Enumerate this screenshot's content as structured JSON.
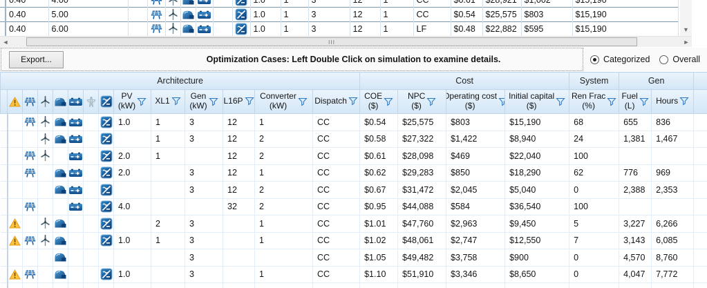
{
  "top_table": {
    "rows": [
      {
        "sens1": "0.40",
        "sens2": "4.00",
        "icons": {
          "pv": true,
          "wind": true,
          "gen": true,
          "battery": true,
          "converter": true
        },
        "values": [
          "1.0",
          "1",
          "3",
          "12",
          "1",
          "CC",
          "$0.61",
          "$28,921",
          "$1,002",
          "$15,190"
        ]
      },
      {
        "sens1": "0.40",
        "sens2": "5.00",
        "icons": {
          "pv": true,
          "wind": true,
          "gen": true,
          "battery": true,
          "converter": true
        },
        "values": [
          "1.0",
          "1",
          "3",
          "12",
          "1",
          "CC",
          "$0.54",
          "$25,575",
          "$803",
          "$15,190"
        ]
      },
      {
        "sens1": "0.40",
        "sens2": "6.00",
        "icons": {
          "pv": true,
          "wind": true,
          "gen": true,
          "battery": true,
          "converter": true
        },
        "values": [
          "1.0",
          "1",
          "3",
          "12",
          "1",
          "LF",
          "$0.48",
          "$22,882",
          "$595",
          "$15,190"
        ]
      }
    ]
  },
  "toolbar": {
    "export_label": "Export...",
    "message": "Optimization Cases: Left Double Click on simulation to examine details.",
    "radio_categorized": "Categorized",
    "radio_overall": "Overall",
    "categorized_selected": true
  },
  "main_table": {
    "group_headers": [
      "Architecture",
      "Cost",
      "System",
      "Gen"
    ],
    "header_icons": [
      "warning",
      "pv",
      "wind",
      "generator",
      "battery",
      "grid",
      "converter"
    ],
    "columns": [
      {
        "label": "PV",
        "sub": "(kW)"
      },
      {
        "label": "XL1",
        "sub": ""
      },
      {
        "label": "Gen",
        "sub": "(kW)"
      },
      {
        "label": "L16P",
        "sub": ""
      },
      {
        "label": "Converter",
        "sub": "(kW)"
      },
      {
        "label": "Dispatch",
        "sub": ""
      },
      {
        "label": "COE",
        "sub": "($)"
      },
      {
        "label": "NPC",
        "sub": "($)"
      },
      {
        "label": "Operating cost",
        "sub": "($)"
      },
      {
        "label": "Initial capital",
        "sub": "($)"
      },
      {
        "label": "Ren Frac",
        "sub": "(%)"
      },
      {
        "label": "Fuel",
        "sub": "(L)"
      },
      {
        "label": "Hours",
        "sub": ""
      }
    ],
    "rows": [
      {
        "warning": false,
        "pv": true,
        "wind": true,
        "gen": true,
        "battery": true,
        "converter": true,
        "values": [
          "1.0",
          "1",
          "3",
          "12",
          "1",
          "CC",
          "$0.54",
          "$25,575",
          "$803",
          "$15,190",
          "68",
          "655",
          "836"
        ]
      },
      {
        "warning": false,
        "pv": false,
        "wind": true,
        "gen": true,
        "battery": true,
        "converter": true,
        "values": [
          "",
          "1",
          "3",
          "12",
          "2",
          "CC",
          "$0.58",
          "$27,322",
          "$1,422",
          "$8,940",
          "24",
          "1,381",
          "1,467"
        ]
      },
      {
        "warning": false,
        "pv": true,
        "wind": true,
        "gen": false,
        "battery": true,
        "converter": true,
        "values": [
          "2.0",
          "1",
          "",
          "12",
          "2",
          "CC",
          "$0.61",
          "$28,098",
          "$469",
          "$22,040",
          "100",
          "",
          ""
        ]
      },
      {
        "warning": false,
        "pv": true,
        "wind": false,
        "gen": true,
        "battery": true,
        "converter": true,
        "values": [
          "2.0",
          "",
          "3",
          "12",
          "1",
          "CC",
          "$0.62",
          "$29,283",
          "$850",
          "$18,290",
          "62",
          "776",
          "969"
        ]
      },
      {
        "warning": false,
        "pv": false,
        "wind": false,
        "gen": true,
        "battery": true,
        "converter": true,
        "values": [
          "",
          "",
          "3",
          "12",
          "2",
          "CC",
          "$0.67",
          "$31,472",
          "$2,045",
          "$5,040",
          "0",
          "2,388",
          "2,353"
        ]
      },
      {
        "warning": false,
        "pv": true,
        "wind": false,
        "gen": false,
        "battery": true,
        "converter": true,
        "values": [
          "4.0",
          "",
          "",
          "32",
          "2",
          "CC",
          "$0.95",
          "$44,088",
          "$584",
          "$36,540",
          "100",
          "",
          ""
        ]
      },
      {
        "warning": true,
        "pv": false,
        "wind": true,
        "gen": true,
        "battery": false,
        "converter": true,
        "values": [
          "",
          "2",
          "3",
          "",
          "1",
          "CC",
          "$1.01",
          "$47,760",
          "$2,963",
          "$9,450",
          "5",
          "3,227",
          "6,266"
        ]
      },
      {
        "warning": true,
        "pv": true,
        "wind": true,
        "gen": true,
        "battery": false,
        "converter": true,
        "values": [
          "1.0",
          "1",
          "3",
          "",
          "1",
          "CC",
          "$1.02",
          "$48,061",
          "$2,747",
          "$12,550",
          "7",
          "3,143",
          "6,085"
        ]
      },
      {
        "warning": false,
        "pv": false,
        "wind": false,
        "gen": true,
        "battery": false,
        "converter": false,
        "values": [
          "",
          "",
          "3",
          "",
          "",
          "CC",
          "$1.05",
          "$49,482",
          "$3,758",
          "$900",
          "0",
          "4,570",
          "8,760"
        ]
      },
      {
        "warning": true,
        "pv": true,
        "wind": false,
        "gen": true,
        "battery": false,
        "converter": true,
        "values": [
          "1.0",
          "",
          "3",
          "",
          "1",
          "CC",
          "$1.10",
          "$51,910",
          "$3,346",
          "$8,650",
          "0",
          "4,047",
          "7,772"
        ]
      }
    ]
  },
  "scrollbar": {
    "h_grip": "III",
    "left_arrow": "◄",
    "right_arrow": "►",
    "down_arrow": "▼"
  },
  "colors": {
    "accent_blue": "#1663a8",
    "header_bg": "#d9e9f7",
    "warning_yellow": "#ffc33c",
    "filter_blue": "#2e7bc4"
  }
}
